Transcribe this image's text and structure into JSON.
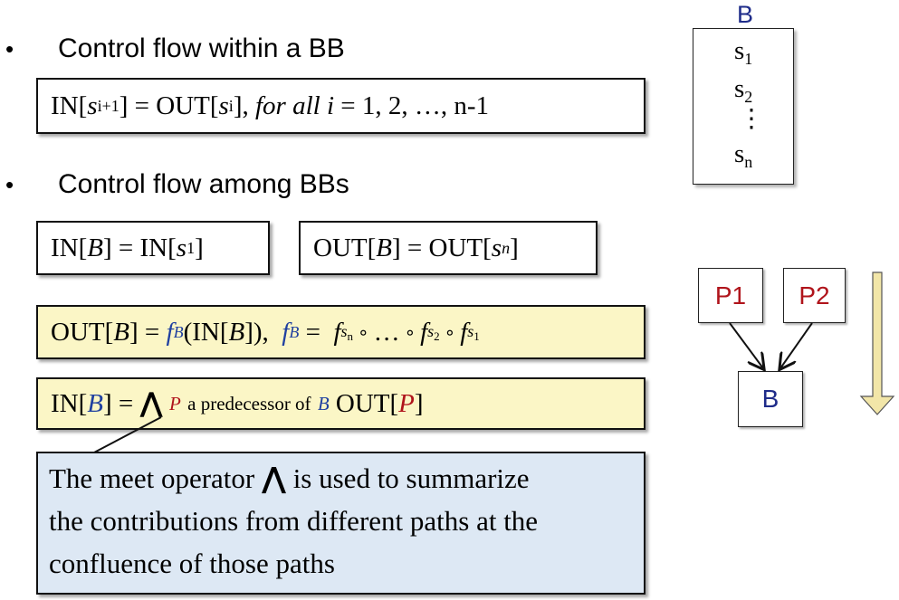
{
  "bullets": [
    {
      "symbol": "•",
      "text": "Control flow within a BB"
    },
    {
      "symbol": "•",
      "text": "Control flow among BBs"
    }
  ],
  "eq_within": {
    "in": "IN[",
    "s": "s",
    "sub_ip1": "i+1",
    "eq_out": "] = OUT[",
    "sub_i": "i",
    "close": "],",
    "for_all": "for all",
    "i": "i",
    "rest": "= 1, 2, …, n-1"
  },
  "eq_in_b": {
    "pre": "IN[",
    "B": "B",
    "mid": "] = IN[",
    "s": "s",
    "sub": "1",
    "post": "]"
  },
  "eq_out_b": {
    "pre": "OUT[",
    "B": "B",
    "mid": "] = OUT[",
    "s": "s",
    "sub": "n",
    "post": "]"
  },
  "eq_transfer": {
    "pre": "OUT[",
    "B": "B",
    "mid": "] =",
    "f": "f",
    "fsub": "B",
    "arg_pre": "(IN[",
    "arg_B": "B",
    "arg_post": "]),",
    "f2": "f",
    "f2sub": "B",
    "eq": "=",
    "f_n": "f",
    "s_n_s": "s",
    "s_n": "n",
    "circ1": "∘",
    "dots": "…",
    "circ2": "∘",
    "f_2": "f",
    "s_2_s": "s",
    "s_2": "2",
    "circ3": "∘",
    "f_1": "f",
    "s_1_s": "s",
    "s_1": "1"
  },
  "eq_meet": {
    "pre": "IN[",
    "B": "B",
    "mid": "] =",
    "wedge": "⋀",
    "P": "P",
    "phrase": "a predecessor of",
    "B2": "B",
    "out_pre": "OUT[",
    "P2": "P",
    "out_post": "]"
  },
  "note": {
    "line1_pre": "The meet operator",
    "wedge": "⋀",
    "line1_post": "is used to summarize",
    "line2": "the contributions from different paths at the",
    "line3": "confluence of those paths"
  },
  "block": {
    "label": "B",
    "statements": [
      {
        "s": "s",
        "sub": "1"
      },
      {
        "s": "s",
        "sub": "2"
      },
      {
        "s": "s",
        "sub": "n"
      }
    ],
    "vdots": "⋮"
  },
  "graph": {
    "nodes": [
      {
        "label": "P1"
      },
      {
        "label": "P2"
      },
      {
        "label": "B"
      }
    ]
  },
  "colors": {
    "yellow_box": "#fbf6c6",
    "blue_box": "#dde8f4",
    "blue_text": "#2040a0",
    "red_text": "#b0141b",
    "arrow": "#f2e6a8"
  },
  "icons": [
    "down-arrow-icon",
    "edge-arrow-icon"
  ]
}
